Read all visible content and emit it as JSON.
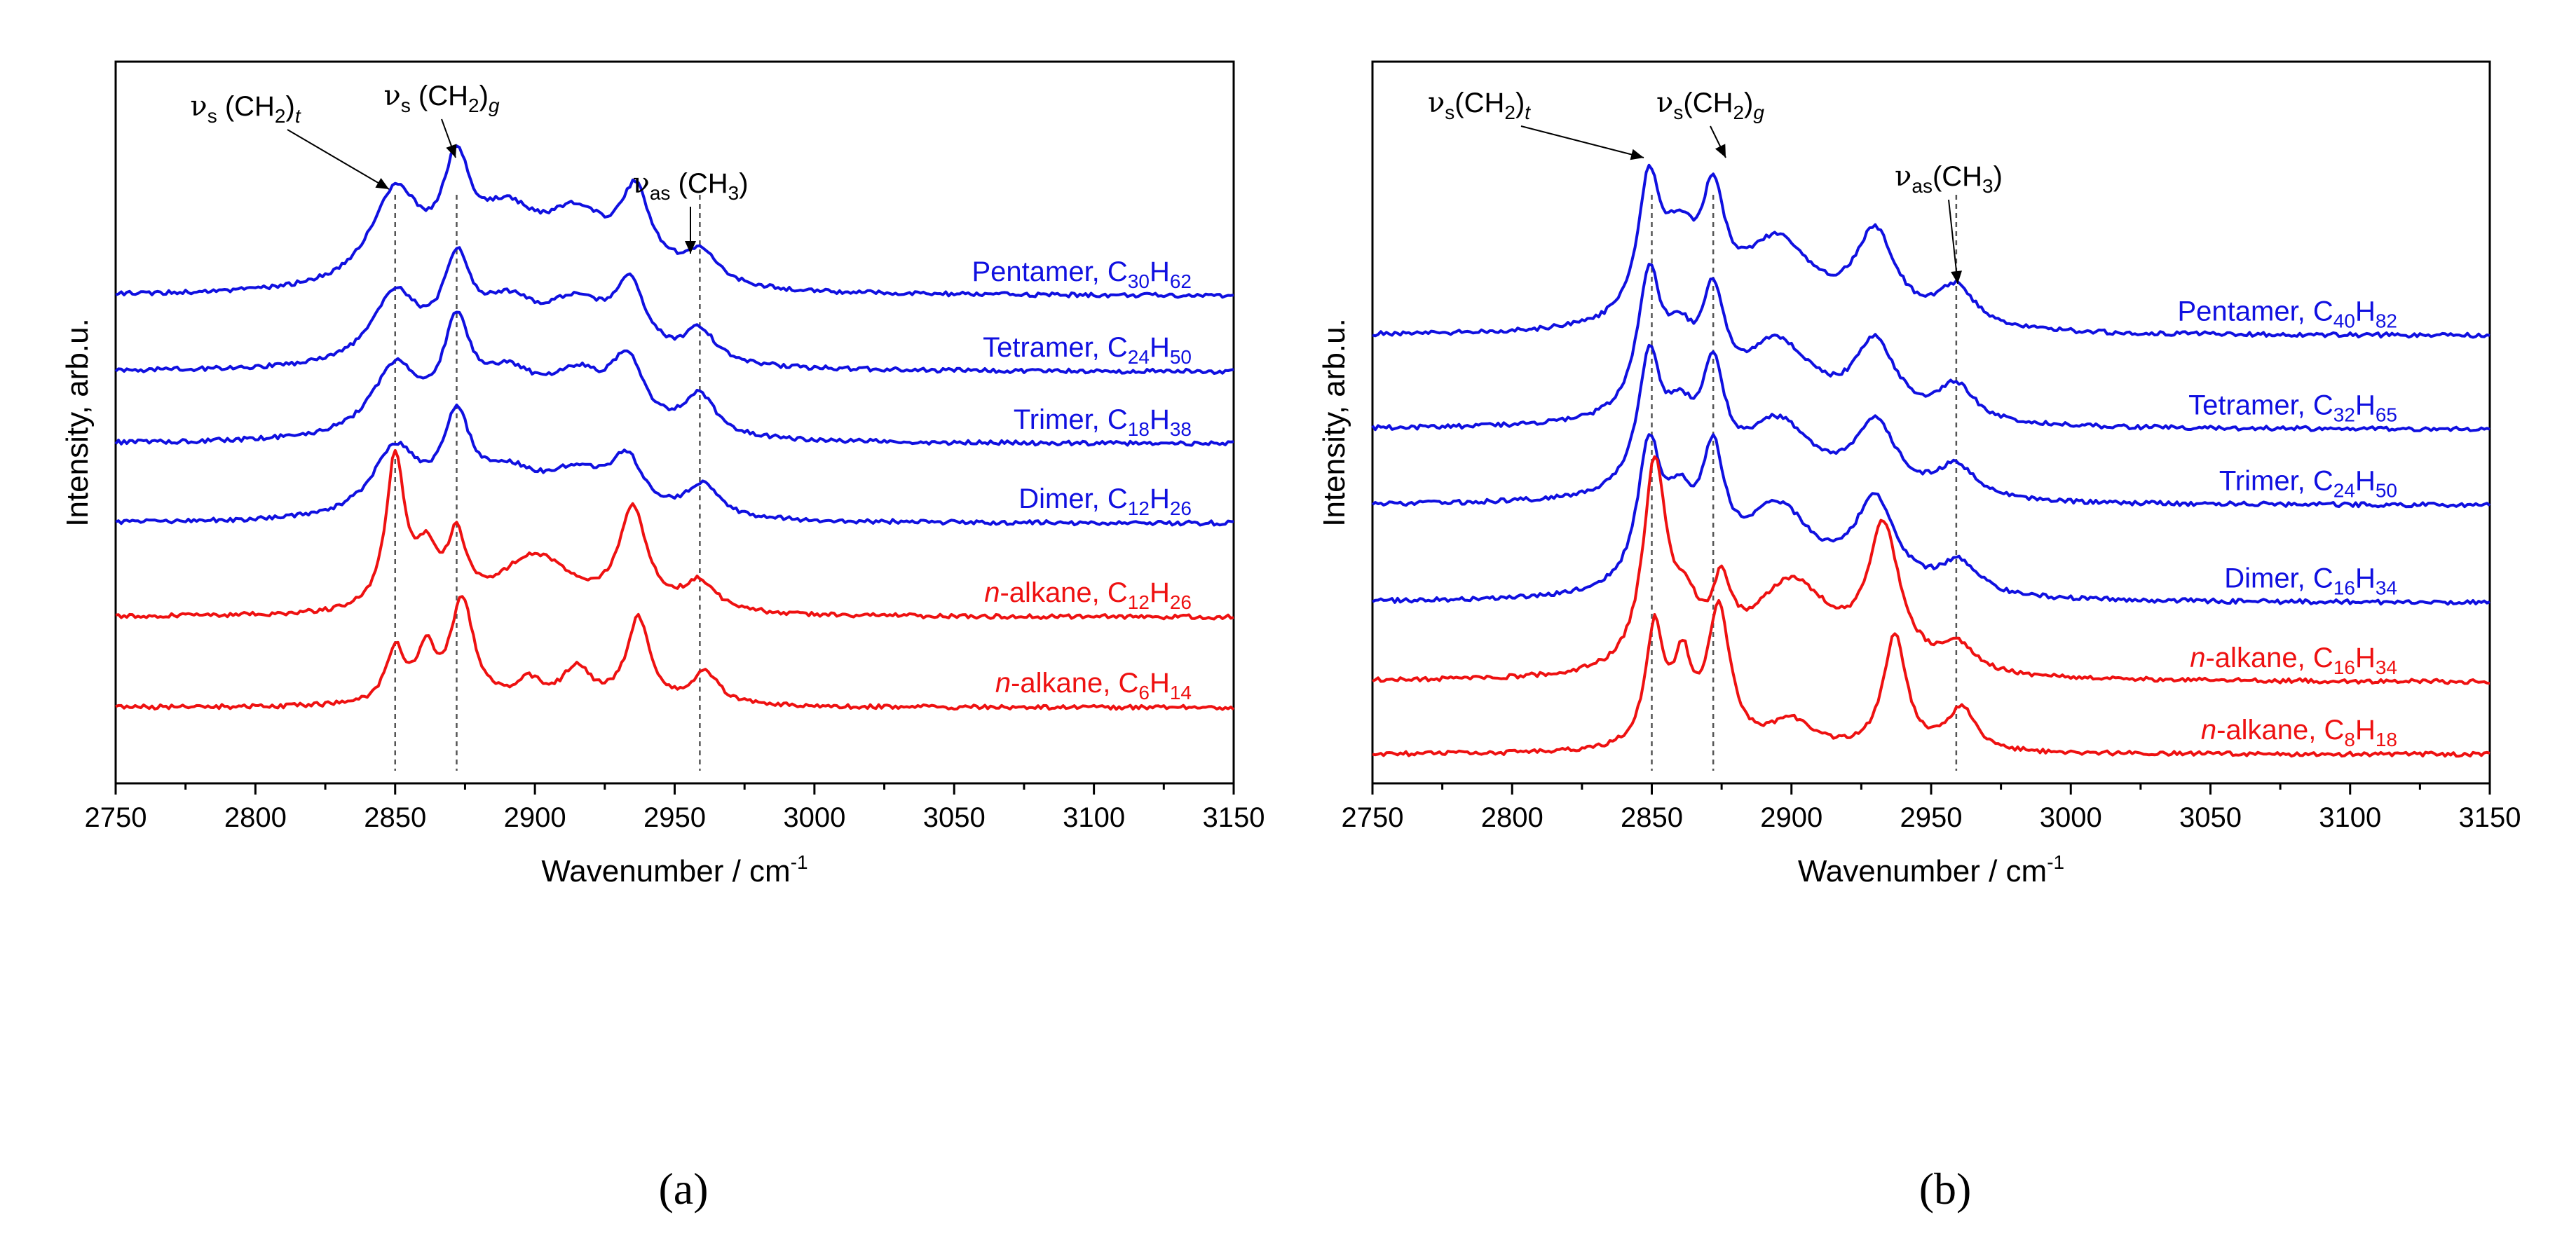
{
  "chart_data": [
    {
      "panel": "a",
      "type": "line",
      "xlabel": "Wavenumber / cm",
      "xlabel_sup": "-1",
      "ylabel": "Intensity, arb.u.",
      "xlim": [
        2750,
        3150
      ],
      "ylim": [
        0,
        10
      ],
      "xticks": [
        2750,
        2800,
        2850,
        2900,
        2950,
        3000,
        3050,
        3100,
        3150
      ],
      "reference_lines": [
        2850,
        2872,
        2959
      ],
      "annotations": [
        {
          "greek": "ν",
          "sub": "s",
          "mid": " (CH",
          "sub2": "2",
          "close": ")",
          "sub3": "t",
          "x": 2850
        },
        {
          "greek": "ν",
          "sub": "s",
          "mid": " (CH",
          "sub2": "2",
          "close": ")",
          "sub3": "g",
          "x": 2872
        },
        {
          "greek": "ν",
          "sub": "as",
          "mid": " (CH",
          "sub2": "3",
          "close": ")",
          "sub3": "",
          "x": 2959
        }
      ],
      "series": [
        {
          "name": "Pentamer",
          "prefix": "",
          "base": ", C",
          "c": "30",
          "h": "H",
          "hn": "62",
          "color": "#1010e0",
          "baseline": 6.75,
          "peaks": [
            [
              2850,
              1.3,
              11
            ],
            [
              2872,
              1.4,
              6
            ],
            [
              2890,
              0.9,
              14
            ],
            [
              2915,
              0.9,
              14
            ],
            [
              2936,
              1.15,
              7
            ],
            [
              2959,
              0.45,
              8
            ]
          ]
        },
        {
          "name": "Tetramer",
          "prefix": "",
          "base": ", C",
          "c": "24",
          "h": "H",
          "hn": "50",
          "color": "#1010e0",
          "baseline": 5.7,
          "peaks": [
            [
              2850,
              0.95,
              10
            ],
            [
              2872,
              1.2,
              6
            ],
            [
              2890,
              0.75,
              14
            ],
            [
              2915,
              0.75,
              14
            ],
            [
              2934,
              0.95,
              7
            ],
            [
              2959,
              0.45,
              7
            ]
          ]
        },
        {
          "name": "Trimer",
          "prefix": "",
          "base": ", C",
          "c": "18",
          "h": "H",
          "hn": "38",
          "color": "#1010e0",
          "baseline": 4.7,
          "peaks": [
            [
              2850,
              0.95,
              10
            ],
            [
              2872,
              1.3,
              6
            ],
            [
              2890,
              0.75,
              14
            ],
            [
              2915,
              0.75,
              14
            ],
            [
              2933,
              0.9,
              7
            ],
            [
              2959,
              0.55,
              7
            ]
          ]
        },
        {
          "name": "Dimer",
          "prefix": "",
          "base": ", C",
          "c": "12",
          "h": "H",
          "hn": "26",
          "color": "#1010e0",
          "baseline": 3.6,
          "peaks": [
            [
              2850,
              0.95,
              10
            ],
            [
              2872,
              1.2,
              6
            ],
            [
              2890,
              0.55,
              14
            ],
            [
              2915,
              0.55,
              14
            ],
            [
              2933,
              0.7,
              7
            ],
            [
              2960,
              0.45,
              7
            ]
          ]
        },
        {
          "name": "",
          "prefix": "n",
          "base": "-alkane, C",
          "c": "12",
          "h": "H",
          "hn": "26",
          "color": "#ee1111",
          "baseline": 2.3,
          "peaks": [
            [
              2850,
              2.1,
              4
            ],
            [
              2861,
              0.7,
              5
            ],
            [
              2872,
              0.9,
              4
            ],
            [
              2900,
              0.8,
              16
            ],
            [
              2935,
              1.4,
              6
            ],
            [
              2959,
              0.4,
              7
            ]
          ]
        },
        {
          "name": "",
          "prefix": "n",
          "base": "-alkane, C",
          "c": "6",
          "h": "H",
          "hn": "14",
          "color": "#ee1111",
          "baseline": 1.05,
          "peaks": [
            [
              2850,
              0.75,
              4
            ],
            [
              2861,
              0.7,
              4
            ],
            [
              2874,
              1.45,
              5
            ],
            [
              2898,
              0.3,
              6
            ],
            [
              2915,
              0.5,
              6
            ],
            [
              2937,
              1.2,
              5
            ],
            [
              2961,
              0.45,
              6
            ]
          ]
        }
      ]
    },
    {
      "panel": "b",
      "type": "line",
      "xlabel": "Wavenumber / cm",
      "xlabel_sup": "-1",
      "ylabel": "Intensity, arb.u.",
      "xlim": [
        2750,
        3150
      ],
      "ylim": [
        0,
        10
      ],
      "xticks": [
        2750,
        2800,
        2850,
        2900,
        2950,
        3000,
        3050,
        3100,
        3150
      ],
      "reference_lines": [
        2850,
        2872,
        2959
      ],
      "annotations": [
        {
          "greek": "ν",
          "sub": "s",
          "mid": "(CH",
          "sub2": "2",
          "close": ")",
          "sub3": "t",
          "x": 2850
        },
        {
          "greek": "ν",
          "sub": "s",
          "mid": "(CH",
          "sub2": "2",
          "close": ")",
          "sub3": "g",
          "x": 2872
        },
        {
          "greek": "ν",
          "sub": "as",
          "mid": "(CH",
          "sub2": "3",
          "close": ")",
          "sub3": "",
          "x": 2959
        }
      ],
      "series": [
        {
          "name": "Pentamer",
          "prefix": "",
          "base": ", C",
          "c": "40",
          "h": "H",
          "hn": "82",
          "color": "#1010e0",
          "baseline": 6.2,
          "peaks": [
            [
              2849,
              1.85,
              5
            ],
            [
              2860,
              1.0,
              7
            ],
            [
              2872,
              1.5,
              5
            ],
            [
              2895,
              1.2,
              16
            ],
            [
              2930,
              1.25,
              9
            ],
            [
              2959,
              0.55,
              8
            ]
          ]
        },
        {
          "name": "Tetramer",
          "prefix": "",
          "base": ", C",
          "c": "32",
          "h": "H",
          "hn": "65",
          "color": "#1010e0",
          "baseline": 4.9,
          "peaks": [
            [
              2849,
              1.85,
              5
            ],
            [
              2860,
              0.9,
              7
            ],
            [
              2872,
              1.4,
              5
            ],
            [
              2895,
              1.1,
              16
            ],
            [
              2930,
              1.05,
              9
            ],
            [
              2959,
              0.5,
              8
            ]
          ]
        },
        {
          "name": "Trimer",
          "prefix": "",
          "base": ", C",
          "c": "24",
          "h": "H",
          "hn": "50",
          "color": "#1010e0",
          "baseline": 3.85,
          "peaks": [
            [
              2849,
              1.75,
              5
            ],
            [
              2860,
              0.9,
              7
            ],
            [
              2872,
              1.45,
              5
            ],
            [
              2895,
              1.05,
              16
            ],
            [
              2930,
              1.0,
              9
            ],
            [
              2959,
              0.45,
              8
            ]
          ]
        },
        {
          "name": "Dimer",
          "prefix": "",
          "base": ", C",
          "c": "16",
          "h": "H",
          "hn": "34",
          "color": "#1010e0",
          "baseline": 2.5,
          "peaks": [
            [
              2849,
              1.85,
              5
            ],
            [
              2860,
              1.0,
              7
            ],
            [
              2872,
              1.55,
              5
            ],
            [
              2895,
              1.2,
              16
            ],
            [
              2930,
              1.25,
              9
            ],
            [
              2960,
              0.45,
              8
            ]
          ]
        },
        {
          "name": "",
          "prefix": "n",
          "base": "-alkane, C",
          "c": "16",
          "h": "H",
          "hn": "34",
          "color": "#ee1111",
          "baseline": 1.4,
          "peaks": [
            [
              2851,
              2.8,
              5
            ],
            [
              2862,
              0.7,
              6
            ],
            [
              2875,
              0.9,
              4
            ],
            [
              2900,
              1.3,
              18
            ],
            [
              2933,
              1.9,
              7
            ],
            [
              2960,
              0.35,
              7
            ]
          ]
        },
        {
          "name": "",
          "prefix": "n",
          "base": "-alkane, C",
          "c": "8",
          "h": "H",
          "hn": "18",
          "color": "#ee1111",
          "baseline": 0.4,
          "peaks": [
            [
              2851,
              1.65,
              4
            ],
            [
              2861,
              1.1,
              4
            ],
            [
              2874,
              1.9,
              5
            ],
            [
              2900,
              0.4,
              10
            ],
            [
              2937,
              1.6,
              5
            ],
            [
              2961,
              0.6,
              6
            ]
          ]
        }
      ]
    }
  ],
  "figure": {
    "sublabel_a": "(a)",
    "sublabel_b": "(b)"
  }
}
